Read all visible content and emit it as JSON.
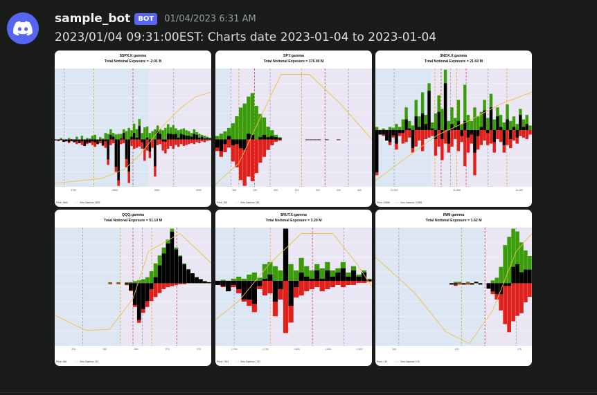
{
  "message": {
    "username": "sample_bot",
    "badge": "BOT",
    "timestamp": "01/04/2023 6:31 AM",
    "content": "2023/01/04 09:31:00EST: Charts date 2023-01-04 to 2023-01-04"
  },
  "colors": {
    "positive": "#3b9c0a",
    "negative": "#e0201b",
    "net": "#000000",
    "zero_gamma_curve": "#f0c040",
    "below_zero_bg": "#dde6f3",
    "above_zero_bg": "#ebe6f3",
    "avatar": "#5865f2"
  },
  "chart_data": [
    {
      "type": "bar",
      "title": "$SPX.X:gamma",
      "subtitle": "Total Notional Exposure = -2.01 B",
      "xticks": [
        "3750",
        "3800",
        "3850",
        "3900"
      ],
      "legend": [
        "Price: 3842",
        "Zero Gamma: 3839"
      ],
      "zero_frac": 0.6,
      "pos": [
        0,
        0,
        3,
        0,
        0,
        3,
        1,
        0,
        6,
        0,
        8,
        0,
        3,
        2,
        8,
        10,
        0,
        5,
        2,
        14,
        12,
        22,
        14,
        11,
        12,
        12,
        22,
        18,
        25,
        20,
        34,
        22,
        44,
        14,
        26,
        28,
        14,
        18,
        22,
        30,
        22,
        20,
        25,
        33,
        26,
        31,
        24,
        20,
        22,
        24,
        20,
        18,
        14,
        22,
        16,
        12,
        10,
        8,
        6,
        4
      ],
      "neg": [
        2,
        3,
        2,
        5,
        4,
        8,
        4,
        6,
        10,
        8,
        12,
        14,
        10,
        8,
        12,
        16,
        10,
        8,
        14,
        18,
        55,
        12,
        8,
        70,
        100,
        10,
        8,
        60,
        94,
        14,
        20,
        18,
        15,
        20,
        46,
        24,
        40,
        18,
        80,
        12,
        10,
        24,
        30,
        20,
        14,
        20,
        12,
        16,
        10,
        14,
        12,
        10,
        8,
        10,
        6,
        8,
        4,
        6,
        3,
        2
      ],
      "net": [
        -2,
        -3,
        1,
        -5,
        -4,
        -5,
        -3,
        -6,
        -4,
        -8,
        -4,
        -14,
        -7,
        -6,
        -4,
        -6,
        -10,
        -3,
        -12,
        -4,
        -43,
        10,
        6,
        -59,
        -88,
        2,
        14,
        -42,
        -69,
        6,
        14,
        4,
        29,
        -6,
        -20,
        4,
        -26,
        0,
        -58,
        18,
        12,
        -4,
        -5,
        13,
        12,
        11,
        12,
        4,
        12,
        10,
        8,
        8,
        6,
        12,
        10,
        4,
        6,
        2,
        3,
        2
      ],
      "curve": [
        [
          0,
          0.97
        ],
        [
          0.3,
          0.93
        ],
        [
          0.45,
          0.85
        ],
        [
          0.55,
          0.72
        ],
        [
          0.68,
          0.5
        ],
        [
          0.8,
          0.34
        ],
        [
          0.9,
          0.24
        ],
        [
          1,
          0.2
        ]
      ],
      "vlines": [
        0.06,
        0.25,
        0.5,
        0.76
      ]
    },
    {
      "type": "bar",
      "title": "SPY:gamma",
      "subtitle": "Total Notional Exposure = 376.00 M",
      "xticks": [
        "380",
        "390",
        "400",
        "410",
        "420",
        "430",
        "440"
      ],
      "legend": [
        "Price: 383",
        "Zero Gamma: 381"
      ],
      "zero_frac": 0.6,
      "pos": [
        6,
        10,
        14,
        20,
        28,
        40,
        55,
        62,
        74,
        80,
        58,
        44,
        38,
        22,
        16,
        8,
        4,
        0,
        0,
        0,
        0,
        0,
        0,
        0,
        0,
        0,
        0,
        0,
        0,
        0,
        0,
        0,
        0,
        0,
        0,
        0,
        0,
        0,
        0,
        0
      ],
      "neg": [
        20,
        30,
        22,
        14,
        38,
        48,
        70,
        80,
        64,
        72,
        58,
        40,
        30,
        18,
        10,
        4,
        2,
        0,
        0,
        0,
        0,
        0,
        0,
        1,
        1,
        1,
        1,
        0,
        1,
        0,
        0,
        1,
        0,
        0,
        0,
        0,
        0,
        0,
        0,
        0
      ],
      "net": [
        -14,
        -20,
        -8,
        6,
        -10,
        -8,
        -15,
        -18,
        10,
        8,
        0,
        4,
        8,
        4,
        6,
        4,
        2,
        0,
        0,
        0,
        0,
        0,
        0,
        -1,
        -1,
        -1,
        -1,
        0,
        -1,
        0,
        0,
        -1,
        0,
        0,
        0,
        0,
        0,
        0,
        0,
        0
      ],
      "curve": [
        [
          0,
          0.98
        ],
        [
          0.15,
          0.8
        ],
        [
          0.3,
          0.38
        ],
        [
          0.42,
          0.05
        ],
        [
          0.6,
          0.05
        ],
        [
          0.8,
          0.3
        ],
        [
          1,
          0.6
        ]
      ],
      "vlines": [
        0.1,
        0.15,
        0.25,
        0.35,
        0.55,
        0.7,
        0.85
      ]
    },
    {
      "type": "bar",
      "title": "$NDX.X:gamma",
      "subtitle": "Total Notional Exposure = 21.60 M",
      "xticks": [
        "10,900",
        "11,000",
        "11,100"
      ],
      "legend": [
        "Price: 10955",
        "Zero Gamma: 10958"
      ],
      "zero_frac": 0.52,
      "pos": [
        4,
        0,
        2,
        0,
        4,
        3,
        8,
        4,
        14,
        30,
        12,
        6,
        40,
        18,
        50,
        20,
        62,
        10,
        22,
        46,
        28,
        80,
        12,
        30,
        16,
        40,
        8,
        60,
        20,
        12,
        30,
        18,
        24,
        40,
        16,
        48,
        14,
        30,
        20,
        10,
        34,
        12,
        18,
        8,
        28,
        14,
        20,
        6
      ],
      "neg": [
        60,
        6,
        8,
        14,
        20,
        10,
        26,
        8,
        18,
        16,
        10,
        30,
        22,
        14,
        28,
        12,
        10,
        8,
        34,
        22,
        40,
        18,
        30,
        22,
        12,
        28,
        16,
        48,
        30,
        18,
        60,
        26,
        20,
        14,
        20,
        18,
        30,
        12,
        16,
        30,
        20,
        24,
        14,
        18,
        8,
        10,
        12,
        6
      ],
      "net": [
        -56,
        -6,
        -6,
        -14,
        -16,
        -7,
        -18,
        -4,
        -4,
        14,
        2,
        -24,
        18,
        4,
        22,
        8,
        52,
        2,
        -12,
        24,
        -12,
        62,
        -18,
        8,
        4,
        12,
        -8,
        12,
        -10,
        -6,
        -30,
        -8,
        4,
        26,
        -4,
        30,
        -16,
        18,
        4,
        -20,
        14,
        -12,
        4,
        -10,
        20,
        4,
        8,
        0
      ],
      "curve": [
        [
          0,
          0.95
        ],
        [
          0.2,
          0.75
        ],
        [
          0.4,
          0.56
        ],
        [
          0.6,
          0.44
        ],
        [
          0.8,
          0.3
        ],
        [
          1,
          0.2
        ]
      ],
      "vlines": [
        0.12,
        0.38,
        0.42,
        0.48,
        0.52,
        0.58,
        0.72,
        0.84
      ]
    },
    {
      "type": "bar",
      "title": "QQQ:gamma",
      "subtitle": "Total Notional Exposure = 51.10 M",
      "xticks": [
        "225",
        "250",
        "265",
        "270",
        "275"
      ],
      "legend": [
        "Price: 266",
        "Zero Gamma: 267"
      ],
      "zero_frac": 0.47,
      "pos": [
        0,
        0,
        0,
        0,
        0,
        0,
        0,
        0,
        0,
        0,
        0,
        0,
        0,
        1,
        0,
        1,
        0,
        1,
        1,
        2,
        3,
        4,
        6,
        12,
        20,
        28,
        36,
        44,
        55,
        36,
        28,
        20,
        14,
        10,
        6,
        4,
        2,
        1
      ],
      "neg": [
        0,
        0,
        0,
        0,
        0,
        0,
        0,
        0,
        0,
        0,
        0,
        0,
        0,
        1,
        0,
        1,
        0,
        2,
        8,
        24,
        40,
        30,
        24,
        18,
        14,
        10,
        6,
        4,
        3,
        2,
        1,
        1,
        0,
        0,
        0,
        0,
        0,
        0
      ],
      "net": [
        0,
        0,
        0,
        0,
        0,
        0,
        0,
        0,
        0,
        0,
        0,
        0,
        0,
        0,
        0,
        0,
        0,
        -1,
        -7,
        -22,
        -37,
        -26,
        -18,
        -6,
        6,
        18,
        30,
        40,
        52,
        34,
        27,
        19,
        14,
        10,
        6,
        4,
        2,
        1
      ],
      "curve": [
        [
          0,
          0.74
        ],
        [
          0.2,
          0.87
        ],
        [
          0.35,
          0.86
        ],
        [
          0.5,
          0.6
        ],
        [
          0.6,
          0.2
        ],
        [
          0.8,
          0.05
        ],
        [
          1,
          0.3
        ]
      ],
      "vlines": [
        0.18,
        0.42,
        0.5,
        0.56,
        0.62,
        0.78
      ]
    },
    {
      "type": "bar",
      "title": "$RUT.X:gamma",
      "subtitle": "Total Notional Exposure = 3.20 M",
      "xticks": [
        "1,700",
        "1,750",
        "1,800",
        "1,850",
        "1,900"
      ],
      "legend": [
        "Price: 1763",
        "Zero Gamma: 1757"
      ],
      "zero_frac": 0.45,
      "pos": [
        0,
        1,
        0,
        2,
        4,
        2,
        6,
        8,
        3,
        16,
        18,
        14,
        10,
        50,
        16,
        10,
        22,
        14,
        10,
        16,
        12,
        18,
        10,
        12,
        18,
        8,
        14,
        6,
        10,
        2
      ],
      "neg": [
        4,
        6,
        10,
        6,
        12,
        20,
        24,
        30,
        8,
        14,
        12,
        34,
        18,
        50,
        40,
        16,
        14,
        10,
        8,
        6,
        10,
        8,
        6,
        4,
        6,
        4,
        4,
        2,
        2,
        1
      ],
      "net": [
        -4,
        -5,
        -10,
        -4,
        -8,
        -18,
        -18,
        -22,
        -5,
        2,
        6,
        -20,
        -8,
        50,
        -24,
        -6,
        8,
        4,
        2,
        10,
        2,
        10,
        4,
        8,
        12,
        4,
        10,
        4,
        8,
        1
      ],
      "curve": [
        [
          0,
          0.78
        ],
        [
          0.15,
          0.62
        ],
        [
          0.35,
          0.3
        ],
        [
          0.55,
          0.05
        ],
        [
          0.75,
          0.05
        ],
        [
          0.9,
          0.3
        ],
        [
          1,
          0.5
        ]
      ],
      "vlines": [
        0.12,
        0.35,
        0.62,
        0.82
      ]
    },
    {
      "type": "bar",
      "title": "IWM:gamma",
      "subtitle": "Total Notional Exposure = 1.62 M",
      "xticks": [
        "165",
        "170",
        "175"
      ],
      "legend": [
        "Price: 175",
        "Zero Gamma: 176"
      ],
      "zero_frac": 0.47,
      "pos": [
        0,
        0,
        0,
        0,
        0,
        0,
        0,
        0,
        0,
        0,
        0,
        0,
        0,
        0,
        0,
        0,
        0,
        0,
        0,
        1,
        1,
        0,
        1,
        0,
        1,
        0,
        0,
        0,
        2,
        4,
        12,
        28,
        34,
        40,
        38,
        30,
        24,
        20
      ],
      "neg": [
        0,
        0,
        0,
        0,
        0,
        0,
        0,
        0,
        0,
        0,
        0,
        0,
        0,
        0,
        0,
        0,
        0,
        0,
        1,
        2,
        1,
        1,
        1,
        1,
        0,
        1,
        0,
        4,
        8,
        12,
        20,
        30,
        36,
        28,
        24,
        22,
        14,
        10
      ],
      "net": [
        0,
        0,
        0,
        0,
        0,
        0,
        0,
        0,
        0,
        0,
        0,
        0,
        0,
        0,
        0,
        0,
        0,
        0,
        -1,
        -1,
        0,
        -1,
        0,
        -1,
        1,
        -1,
        0,
        -4,
        -6,
        -8,
        -8,
        -2,
        -2,
        12,
        14,
        8,
        10,
        10
      ],
      "curve": [
        [
          0,
          0.25
        ],
        [
          0.25,
          0.55
        ],
        [
          0.45,
          0.88
        ],
        [
          0.6,
          0.98
        ],
        [
          0.75,
          0.7
        ],
        [
          0.9,
          0.2
        ],
        [
          1,
          0.05
        ]
      ],
      "vlines": [
        0.15,
        0.55,
        0.7,
        0.9
      ]
    }
  ]
}
